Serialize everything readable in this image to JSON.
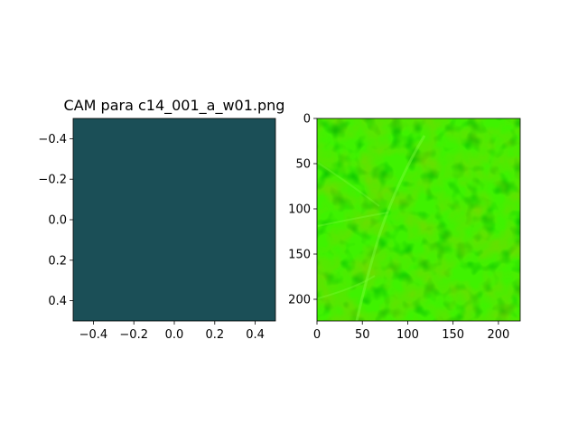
{
  "chart_data": [
    {
      "type": "heatmap",
      "title": "CAM para c14_001_a_w01.png",
      "xlim": [
        -0.5,
        0.5
      ],
      "ylim": [
        0.5,
        -0.5
      ],
      "y_inverted": true,
      "x_ticks": [
        -0.4,
        -0.2,
        0.0,
        0.2,
        0.4
      ],
      "x_tick_labels": [
        "−0.4",
        "−0.2",
        "0.0",
        "0.2",
        "0.4"
      ],
      "y_ticks": [
        -0.4,
        -0.2,
        0.0,
        0.2,
        0.4
      ],
      "y_tick_labels": [
        "−0.4",
        "−0.2",
        "0.0",
        "0.2",
        "0.4"
      ],
      "cells": 1,
      "fill_color": "#1b4f57",
      "grid": false
    },
    {
      "type": "image",
      "title": "",
      "xlim": [
        0,
        224
      ],
      "ylim": [
        224,
        0
      ],
      "y_inverted": true,
      "x_ticks": [
        0,
        50,
        100,
        150,
        200
      ],
      "x_tick_labels": [
        "0",
        "50",
        "100",
        "150",
        "200"
      ],
      "y_ticks": [
        0,
        50,
        100,
        150,
        200
      ],
      "y_tick_labels": [
        "0",
        "50",
        "100",
        "150",
        "200"
      ],
      "base_color": "#3ff200",
      "grid": false
    }
  ]
}
